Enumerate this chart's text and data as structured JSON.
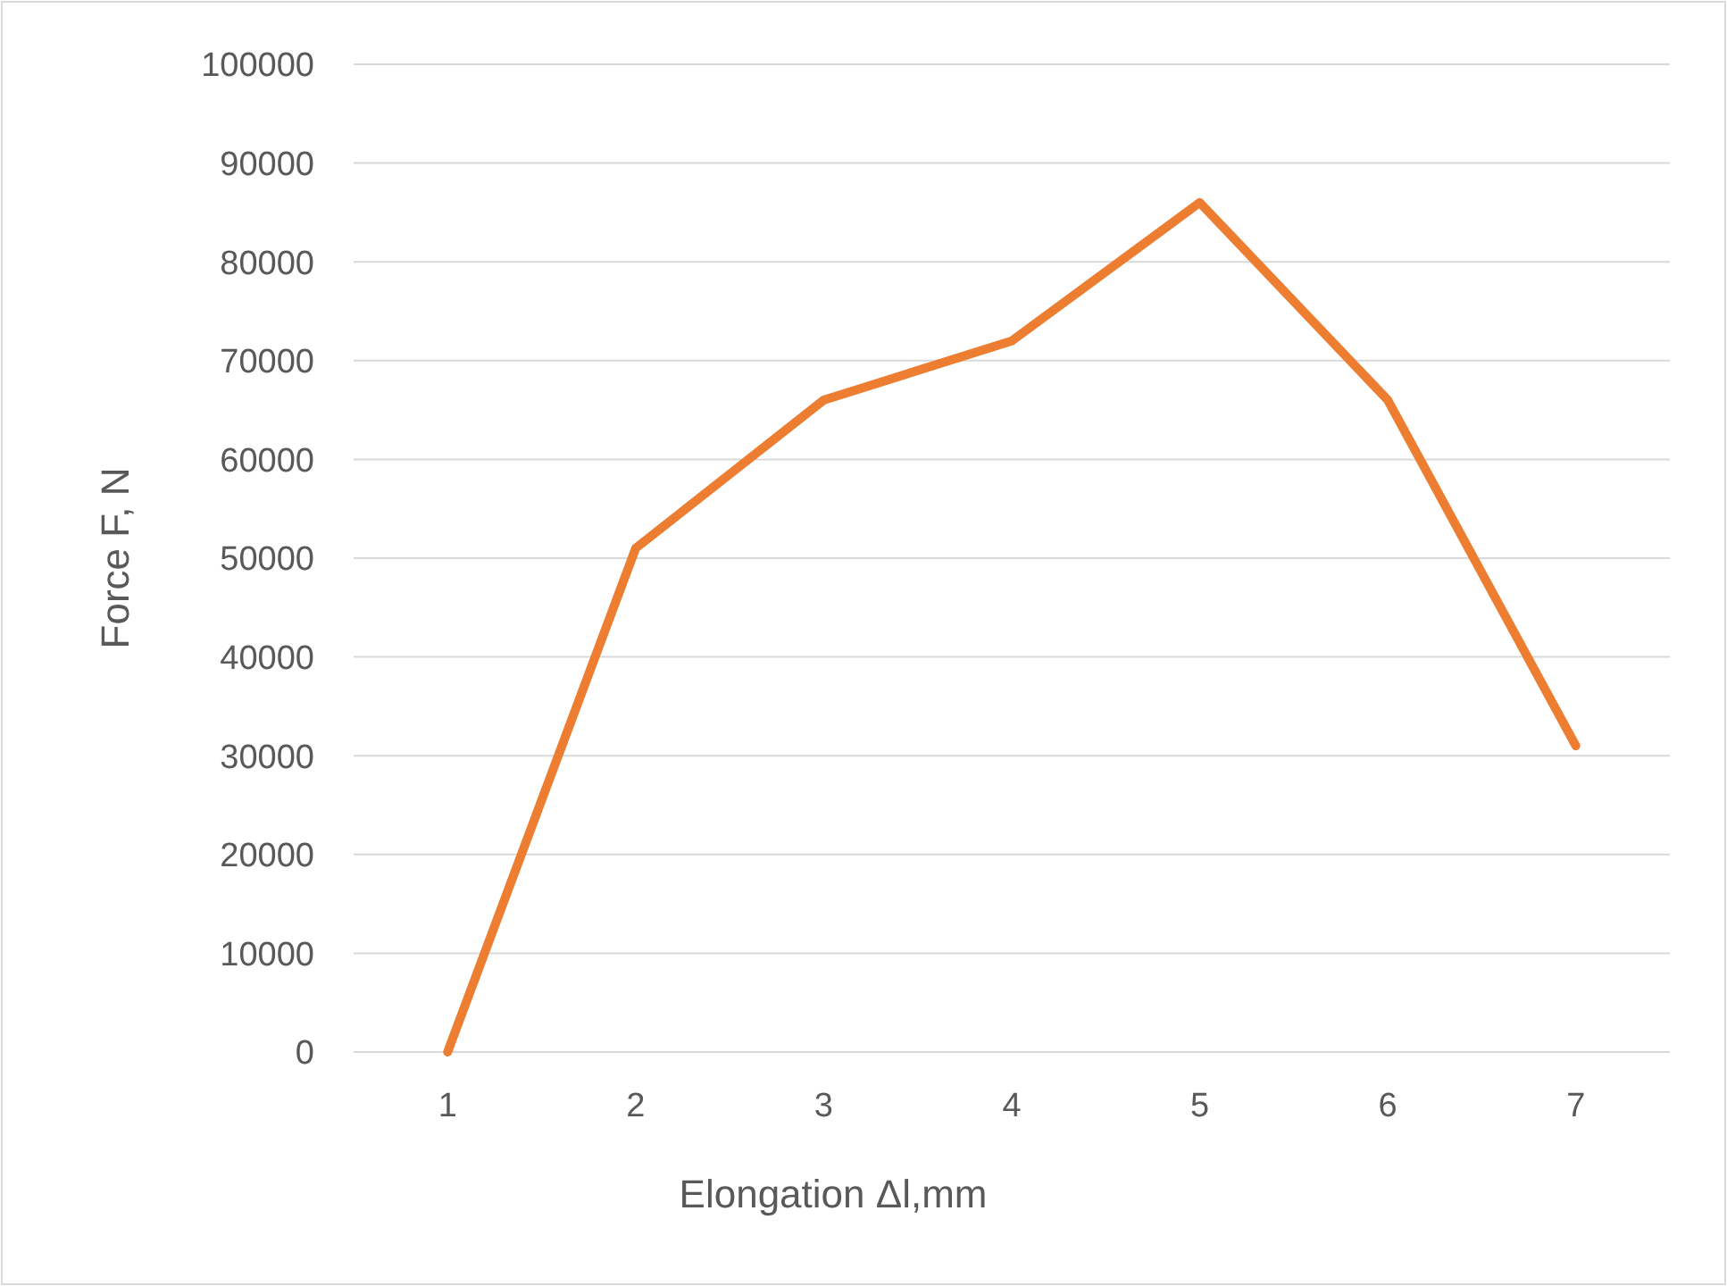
{
  "chart_data": {
    "type": "line",
    "xlabel": "Elongation Δl,mm",
    "ylabel": "Force F, N",
    "categories": [
      "1",
      "2",
      "3",
      "4",
      "5",
      "6",
      "7"
    ],
    "series": [
      {
        "color": "#ed7d31",
        "values": [
          0,
          51000,
          66000,
          72000,
          86000,
          66000,
          31000
        ]
      }
    ],
    "ylim": [
      0,
      100000
    ],
    "yticks": [
      0,
      10000,
      20000,
      30000,
      40000,
      50000,
      60000,
      70000,
      80000,
      90000,
      100000
    ],
    "grid": "y",
    "marker": "none",
    "line_style": "solid"
  }
}
